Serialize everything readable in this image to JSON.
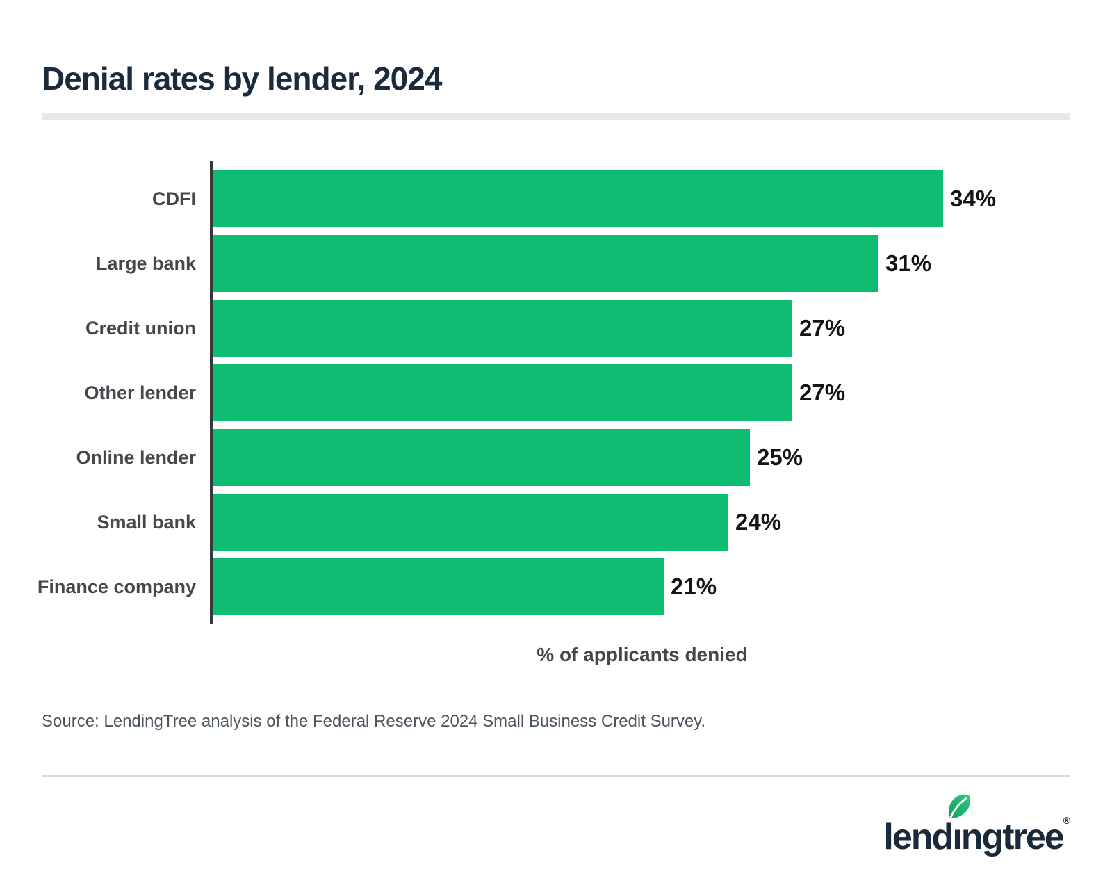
{
  "header": {
    "title": "Denial rates by lender, 2024"
  },
  "chart_data": {
    "type": "bar",
    "orientation": "horizontal",
    "title": "Denial rates by lender, 2024",
    "categories": [
      "CDFI",
      "Large bank",
      "Credit union",
      "Other lender",
      "Online lender",
      "Small bank",
      "Finance company"
    ],
    "values": [
      34,
      31,
      27,
      27,
      25,
      24,
      21
    ],
    "value_labels": [
      "34%",
      "31%",
      "27%",
      "27%",
      "25%",
      "24%",
      "21%"
    ],
    "xlabel": "% of applicants denied",
    "xlim": [
      0,
      40
    ],
    "grid": false,
    "legend": false,
    "bar_color": "#0ebd72"
  },
  "footer": {
    "source_note": "Source: LendingTree analysis of the Federal Reserve 2024 Small Business Credit Survey.",
    "logo": {
      "text": "lendingtree",
      "text_pre": "lend",
      "text_i": "ı",
      "text_post": "ngtree",
      "registered_mark": "®"
    }
  },
  "colors": {
    "title_navy": "#1c2b3b",
    "bar_green": "#0ebd72",
    "axis_dark": "#383838",
    "category_label_gray": "#44484c",
    "value_label_black": "#141414",
    "source_gray": "#4b5560",
    "divider_gray": "#e8e8e8",
    "footer_rule_gray": "#d9d9d9",
    "logo_navy": "#1a2a3a",
    "leaf_green_dark": "#0f9e62",
    "leaf_green_light": "#35c97f"
  }
}
